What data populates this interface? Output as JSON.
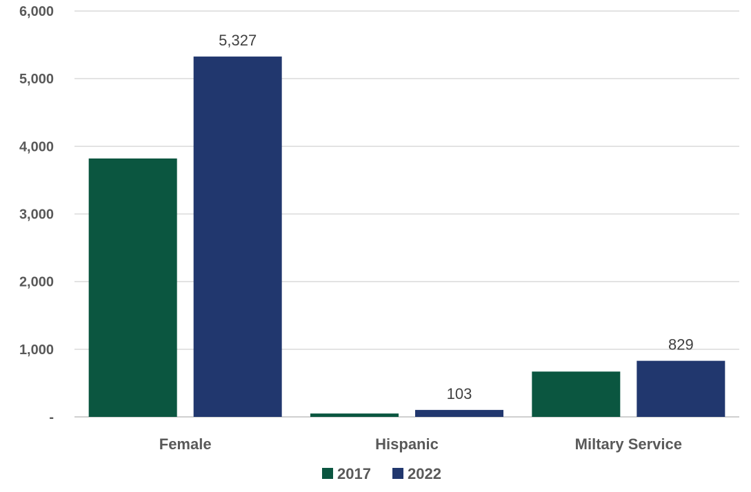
{
  "chart_data": {
    "type": "bar",
    "categories": [
      "Female",
      "Hispanic",
      "Miltary Service"
    ],
    "series": [
      {
        "name": "2017",
        "color": "#0b5640",
        "values": [
          3820,
          50,
          670
        ],
        "labels": [
          null,
          null,
          null
        ]
      },
      {
        "name": "2022",
        "color": "#21376e",
        "values": [
          5327,
          103,
          829
        ],
        "labels": [
          "5,327",
          "103",
          "829"
        ]
      }
    ],
    "ylim": [
      0,
      6000
    ],
    "yticks": [
      {
        "value": 0,
        "label": "-"
      },
      {
        "value": 1000,
        "label": "1,000"
      },
      {
        "value": 2000,
        "label": "2,000"
      },
      {
        "value": 3000,
        "label": "3,000"
      },
      {
        "value": 4000,
        "label": "4,000"
      },
      {
        "value": 5000,
        "label": "5,000"
      },
      {
        "value": 6000,
        "label": "6,000"
      }
    ],
    "grid": true,
    "legend_position": "bottom-center",
    "gridline_color": "#d9d9d9",
    "axis_color": "#bfbfbf"
  }
}
